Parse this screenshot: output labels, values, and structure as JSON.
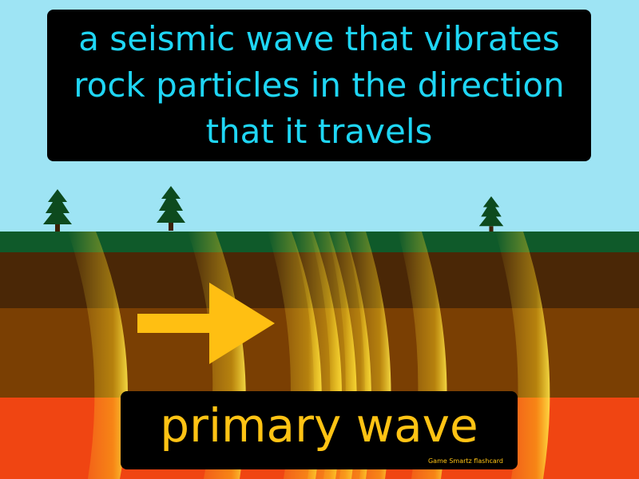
{
  "card": {
    "definition": "a seismic wave that vibrates rock particles in the direction that it travels",
    "term": "primary wave",
    "brand": "Game Smartz flashcard"
  },
  "scene": {
    "colors": {
      "sky": "#9ee4f4",
      "grass": "#0f5a2a",
      "soil_dark": "#4a2706",
      "soil_mid": "#7a3f03",
      "lava": "#f04512",
      "wave_glow": "#ffd21a",
      "arrow": "#ffbf12",
      "tree": "#0d4a1e"
    },
    "icons": [
      "pine-tree-icon",
      "pine-tree-icon",
      "pine-tree-icon",
      "arrow-right-icon"
    ]
  }
}
